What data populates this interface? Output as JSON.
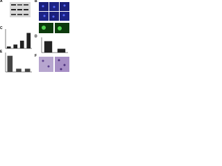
{
  "panels": [
    {
      "label": "A"
    },
    {
      "label": "B"
    },
    {
      "label": "C",
      "chart_data": {
        "type": "bar",
        "values": [
          0.5,
          1,
          2,
          4
        ],
        "ylim": [
          0,
          5
        ],
        "color": "#222222"
      }
    },
    {
      "label": "D",
      "chart_data": {
        "type": "bar",
        "values": [
          3,
          1
        ],
        "ylim": [
          0,
          4
        ],
        "color": "#222222"
      }
    },
    {
      "label": "E",
      "chart_data": {
        "type": "bar",
        "values": [
          5,
          1,
          1
        ],
        "ylim": [
          0,
          6
        ],
        "color": "#444444"
      }
    },
    {
      "label": "F"
    }
  ]
}
